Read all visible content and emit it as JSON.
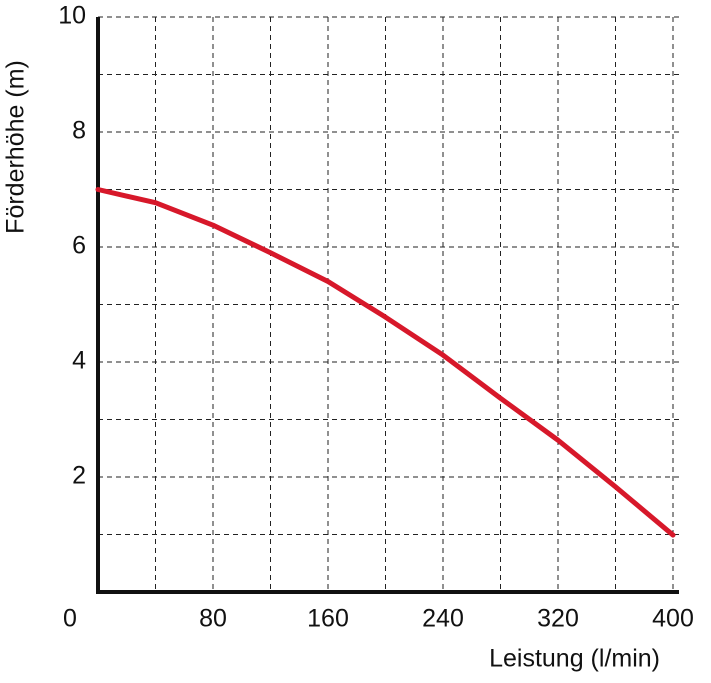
{
  "chart_data": {
    "type": "line",
    "x_label": "Leistung (l/min)",
    "y_label": "Förderhöhe  (m)",
    "x": [
      0,
      40,
      80,
      120,
      160,
      200,
      240,
      280,
      320,
      360,
      400
    ],
    "series": [
      {
        "color": "#d7182a",
        "values": [
          7.0,
          6.77,
          6.38,
          5.9,
          5.4,
          4.78,
          4.12,
          3.37,
          2.64,
          1.83,
          0.99
        ]
      }
    ],
    "xlim": [
      0,
      400
    ],
    "ylim": [
      0,
      10
    ],
    "xticks": [
      0,
      80,
      160,
      240,
      320,
      400
    ],
    "yticks": [
      2,
      4,
      6,
      8,
      10
    ],
    "x_minor_grid": [
      40,
      120,
      200,
      280,
      360
    ],
    "y_minor_grid": [
      1,
      3,
      5,
      7,
      9
    ],
    "grid": true
  }
}
